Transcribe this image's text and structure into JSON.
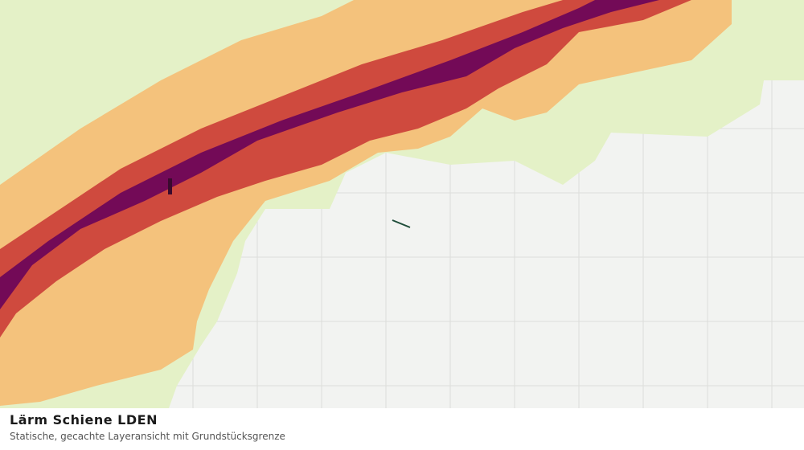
{
  "title": "Lärm Schiene LDEN",
  "subtitle": "Statische, gecachte Layeransicht mit Grundstücksgrenze"
}
